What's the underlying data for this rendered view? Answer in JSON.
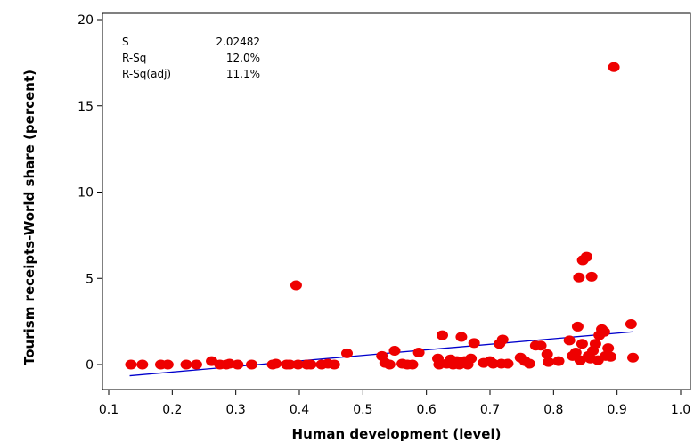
{
  "chart_data": {
    "type": "scatter",
    "title": "",
    "xlabel": "Human development (level)",
    "ylabel": "Tourism receipts-World share (percent)",
    "xlim": [
      0.1,
      1.0
    ],
    "ylim": [
      -1.4,
      20.3
    ],
    "x_ticks": [
      "0.1",
      "0.2",
      "0.3",
      "0.4",
      "0.5",
      "0.6",
      "0.7",
      "0.8",
      "0.9",
      "1.0"
    ],
    "y_ticks": [
      "0",
      "5",
      "10",
      "15",
      "20"
    ],
    "grid": false,
    "marker_color": "#ee0000",
    "line_color": "#0000cc",
    "stats": [
      {
        "label": "S",
        "value": "2.02482"
      },
      {
        "label": "R-Sq",
        "value": "12.0%"
      },
      {
        "label": "R-Sq(adj)",
        "value": "11.1%"
      }
    ],
    "fit_line": {
      "x": [
        0.133,
        0.925
      ],
      "y": [
        -0.65,
        1.9
      ]
    },
    "points": [
      {
        "x": 0.135,
        "y": 0.0
      },
      {
        "x": 0.153,
        "y": 0.0
      },
      {
        "x": 0.182,
        "y": 0.0
      },
      {
        "x": 0.193,
        "y": 0.0
      },
      {
        "x": 0.222,
        "y": 0.0
      },
      {
        "x": 0.238,
        "y": 0.0
      },
      {
        "x": 0.262,
        "y": 0.2
      },
      {
        "x": 0.275,
        "y": 0.0
      },
      {
        "x": 0.285,
        "y": 0.0
      },
      {
        "x": 0.29,
        "y": 0.05
      },
      {
        "x": 0.303,
        "y": 0.0
      },
      {
        "x": 0.325,
        "y": 0.0
      },
      {
        "x": 0.358,
        "y": 0.0
      },
      {
        "x": 0.363,
        "y": 0.05
      },
      {
        "x": 0.38,
        "y": 0.0
      },
      {
        "x": 0.385,
        "y": 0.0
      },
      {
        "x": 0.395,
        "y": 4.6
      },
      {
        "x": 0.398,
        "y": 0.0
      },
      {
        "x": 0.412,
        "y": 0.0
      },
      {
        "x": 0.418,
        "y": 0.0
      },
      {
        "x": 0.435,
        "y": 0.0
      },
      {
        "x": 0.445,
        "y": 0.05
      },
      {
        "x": 0.455,
        "y": 0.0
      },
      {
        "x": 0.475,
        "y": 0.65
      },
      {
        "x": 0.53,
        "y": 0.5
      },
      {
        "x": 0.535,
        "y": 0.1
      },
      {
        "x": 0.542,
        "y": 0.0
      },
      {
        "x": 0.55,
        "y": 0.8
      },
      {
        "x": 0.562,
        "y": 0.05
      },
      {
        "x": 0.57,
        "y": 0.0
      },
      {
        "x": 0.578,
        "y": 0.0
      },
      {
        "x": 0.588,
        "y": 0.7
      },
      {
        "x": 0.618,
        "y": 0.35
      },
      {
        "x": 0.62,
        "y": 0.0
      },
      {
        "x": 0.625,
        "y": 1.7
      },
      {
        "x": 0.632,
        "y": 0.05
      },
      {
        "x": 0.638,
        "y": 0.3
      },
      {
        "x": 0.642,
        "y": 0.0
      },
      {
        "x": 0.648,
        "y": 0.2
      },
      {
        "x": 0.652,
        "y": 0.0
      },
      {
        "x": 0.655,
        "y": 1.6
      },
      {
        "x": 0.66,
        "y": 0.2
      },
      {
        "x": 0.665,
        "y": 0.0
      },
      {
        "x": 0.67,
        "y": 0.35
      },
      {
        "x": 0.675,
        "y": 1.25
      },
      {
        "x": 0.69,
        "y": 0.1
      },
      {
        "x": 0.7,
        "y": 0.2
      },
      {
        "x": 0.705,
        "y": 0.05
      },
      {
        "x": 0.715,
        "y": 1.2
      },
      {
        "x": 0.718,
        "y": 0.05
      },
      {
        "x": 0.72,
        "y": 1.45
      },
      {
        "x": 0.728,
        "y": 0.05
      },
      {
        "x": 0.748,
        "y": 0.4
      },
      {
        "x": 0.755,
        "y": 0.2
      },
      {
        "x": 0.762,
        "y": 0.05
      },
      {
        "x": 0.772,
        "y": 1.1
      },
      {
        "x": 0.78,
        "y": 1.1
      },
      {
        "x": 0.79,
        "y": 0.6
      },
      {
        "x": 0.792,
        "y": 0.15
      },
      {
        "x": 0.808,
        "y": 0.2
      },
      {
        "x": 0.825,
        "y": 1.4
      },
      {
        "x": 0.83,
        "y": 0.5
      },
      {
        "x": 0.835,
        "y": 0.7
      },
      {
        "x": 0.838,
        "y": 2.2
      },
      {
        "x": 0.84,
        "y": 5.05
      },
      {
        "x": 0.842,
        "y": 0.25
      },
      {
        "x": 0.845,
        "y": 1.2
      },
      {
        "x": 0.846,
        "y": 6.05
      },
      {
        "x": 0.852,
        "y": 6.25
      },
      {
        "x": 0.855,
        "y": 0.5
      },
      {
        "x": 0.858,
        "y": 0.35
      },
      {
        "x": 0.86,
        "y": 5.1
      },
      {
        "x": 0.862,
        "y": 0.8
      },
      {
        "x": 0.866,
        "y": 1.2
      },
      {
        "x": 0.87,
        "y": 0.25
      },
      {
        "x": 0.872,
        "y": 1.7
      },
      {
        "x": 0.876,
        "y": 2.05
      },
      {
        "x": 0.88,
        "y": 1.9
      },
      {
        "x": 0.882,
        "y": 0.5
      },
      {
        "x": 0.886,
        "y": 0.95
      },
      {
        "x": 0.89,
        "y": 0.45
      },
      {
        "x": 0.895,
        "y": 17.25
      },
      {
        "x": 0.922,
        "y": 2.35
      },
      {
        "x": 0.925,
        "y": 0.4
      }
    ]
  }
}
